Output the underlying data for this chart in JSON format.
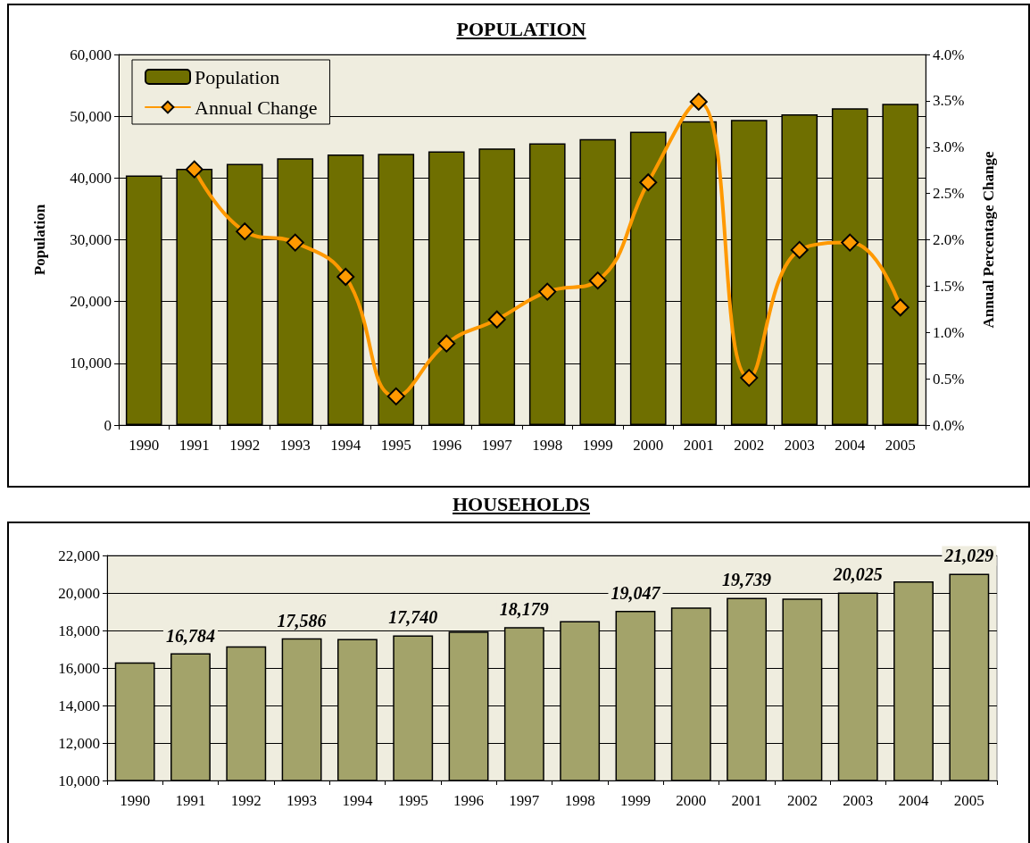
{
  "chart_data": [
    {
      "type": "bar",
      "title": "POPULATION",
      "ylabel": "Population",
      "y2label": "Annual Percentage Change",
      "categories": [
        "1990",
        "1991",
        "1992",
        "1993",
        "1994",
        "1995",
        "1996",
        "1997",
        "1998",
        "1999",
        "2000",
        "2001",
        "2002",
        "2003",
        "2004",
        "2005"
      ],
      "series": [
        {
          "name": "Population",
          "color": "#6f6f00",
          "values": [
            40400,
            41500,
            42300,
            43200,
            43800,
            43900,
            44300,
            44800,
            45600,
            46300,
            47500,
            49200,
            49400,
            50300,
            51300,
            52000
          ]
        },
        {
          "name": "Annual Change",
          "type": "line",
          "axis": "y2",
          "color": "#ff9900",
          "marker": "diamond",
          "values": [
            null,
            2.76,
            2.09,
            1.97,
            1.6,
            0.31,
            0.88,
            1.14,
            1.44,
            1.56,
            2.62,
            3.49,
            0.51,
            1.89,
            1.97,
            1.27
          ]
        }
      ],
      "ylim": [
        0,
        60000
      ],
      "yticks": [
        {
          "value": 0,
          "label": "0"
        },
        {
          "value": 10000,
          "label": "10,000"
        },
        {
          "value": 20000,
          "label": "20,000"
        },
        {
          "value": 30000,
          "label": "30,000"
        },
        {
          "value": 40000,
          "label": "40,000"
        },
        {
          "value": 50000,
          "label": "50,000"
        },
        {
          "value": 60000,
          "label": "60,000"
        }
      ],
      "y2lim": [
        0,
        4
      ],
      "y2ticks": [
        {
          "value": 0,
          "label": "0.0%"
        },
        {
          "value": 0.5,
          "label": "0.5%"
        },
        {
          "value": 1,
          "label": "1.0%"
        },
        {
          "value": 1.5,
          "label": "1.5%"
        },
        {
          "value": 2,
          "label": "2.0%"
        },
        {
          "value": 2.5,
          "label": "2.5%"
        },
        {
          "value": 3,
          "label": "3.0%"
        },
        {
          "value": 3.5,
          "label": "3.5%"
        },
        {
          "value": 4,
          "label": "4.0%"
        }
      ],
      "grid": "y",
      "legend": "top left"
    },
    {
      "type": "bar",
      "title": "HOUSEHOLDS",
      "categories": [
        "1990",
        "1991",
        "1992",
        "1993",
        "1994",
        "1995",
        "1996",
        "1997",
        "1998",
        "1999",
        "2000",
        "2001",
        "2002",
        "2003",
        "2004",
        "2005"
      ],
      "series": [
        {
          "color": "#a3a36a",
          "values": [
            16300,
            16784,
            17150,
            17586,
            17550,
            17740,
            17940,
            18179,
            18500,
            19047,
            19230,
            19739,
            19700,
            20025,
            20620,
            21029
          ],
          "value_labels": [
            null,
            "16,784",
            null,
            "17,586",
            null,
            "17,740",
            null,
            "18,179",
            null,
            "19,047",
            null,
            "19,739",
            null,
            "20,025",
            null,
            "21,029"
          ]
        }
      ],
      "ylim": [
        10000,
        22000
      ],
      "yticks": [
        {
          "value": 10000,
          "label": "10,000"
        },
        {
          "value": 12000,
          "label": "12,000"
        },
        {
          "value": 14000,
          "label": "14,000"
        },
        {
          "value": 16000,
          "label": "16,000"
        },
        {
          "value": 18000,
          "label": "18,000"
        },
        {
          "value": 20000,
          "label": "20,000"
        },
        {
          "value": 22000,
          "label": "22,000"
        }
      ],
      "grid": "y",
      "legend": false
    }
  ]
}
